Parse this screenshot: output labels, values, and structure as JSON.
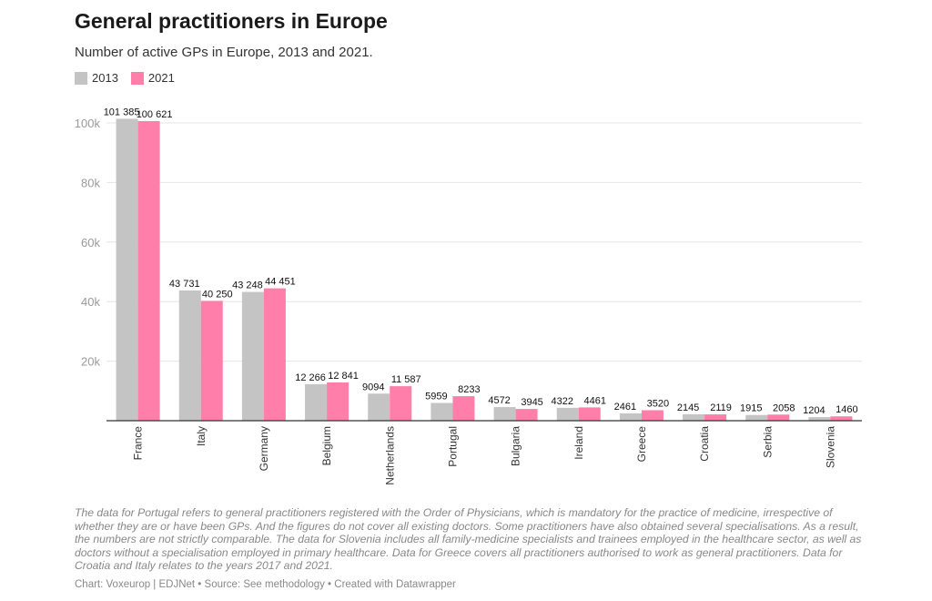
{
  "title": "General practitioners in Europe",
  "subtitle": "Number of active GPs in Europe, 2013 and 2021.",
  "legend": [
    {
      "label": "2013",
      "color": "#c4c4c4"
    },
    {
      "label": "2021",
      "color": "#ff7faa"
    }
  ],
  "chart_data": {
    "type": "bar",
    "title": "General practitioners in Europe",
    "categories": [
      "France",
      "Italy",
      "Germany",
      "Belgium",
      "Netherlands",
      "Portugal",
      "Bulgaria",
      "Ireland",
      "Greece",
      "Croatia",
      "Serbia",
      "Slovenia"
    ],
    "series": [
      {
        "name": "2013",
        "color": "#c4c4c4",
        "values": [
          101385,
          43731,
          43248,
          12266,
          9094,
          5959,
          4572,
          4322,
          2461,
          2145,
          1915,
          1204
        ],
        "labels": [
          "101 385",
          "43 731",
          "43 248",
          "12 266",
          "9094",
          "5959",
          "4572",
          "4322",
          "2461",
          "2145",
          "1915",
          "1204"
        ]
      },
      {
        "name": "2021",
        "color": "#ff7faa",
        "values": [
          100621,
          40250,
          44451,
          12841,
          11587,
          8233,
          3945,
          4461,
          3520,
          2119,
          2058,
          1460
        ],
        "labels": [
          "100 621",
          "40 250",
          "44 451",
          "12 841",
          "11 587",
          "8233",
          "3945",
          "4461",
          "3520",
          "2119",
          "2058",
          "1460"
        ]
      }
    ],
    "ylim": [
      0,
      100000
    ],
    "yticks": [
      20000,
      40000,
      60000,
      80000,
      100000
    ],
    "ytick_labels": [
      "20k",
      "40k",
      "60k",
      "80k",
      "100k"
    ],
    "xlabel": "",
    "ylabel": "",
    "grid": true
  },
  "notes": "The data for Portugal refers to general practitioners registered with the Order of Physicians, which is mandatory for the practice of medicine, irrespective of whether they are or have been GPs. And the figures do not cover all existing doctors. Some practitioners have also obtained several specialisations. As a result, the numbers are not strictly comparable. The data for Slovenia includes all family-medicine specialists and trainees employed in the healthcare sector, as well as doctors without a specialisation employed in primary healthcare. Data for Greece covers all practitioners authorised to work as general practitioners. Data for Croatia and Italy relates to the years 2017 and 2021.",
  "footer": "Chart: Voxeurop | EDJNet • Source: See methodology • Created with Datawrapper"
}
